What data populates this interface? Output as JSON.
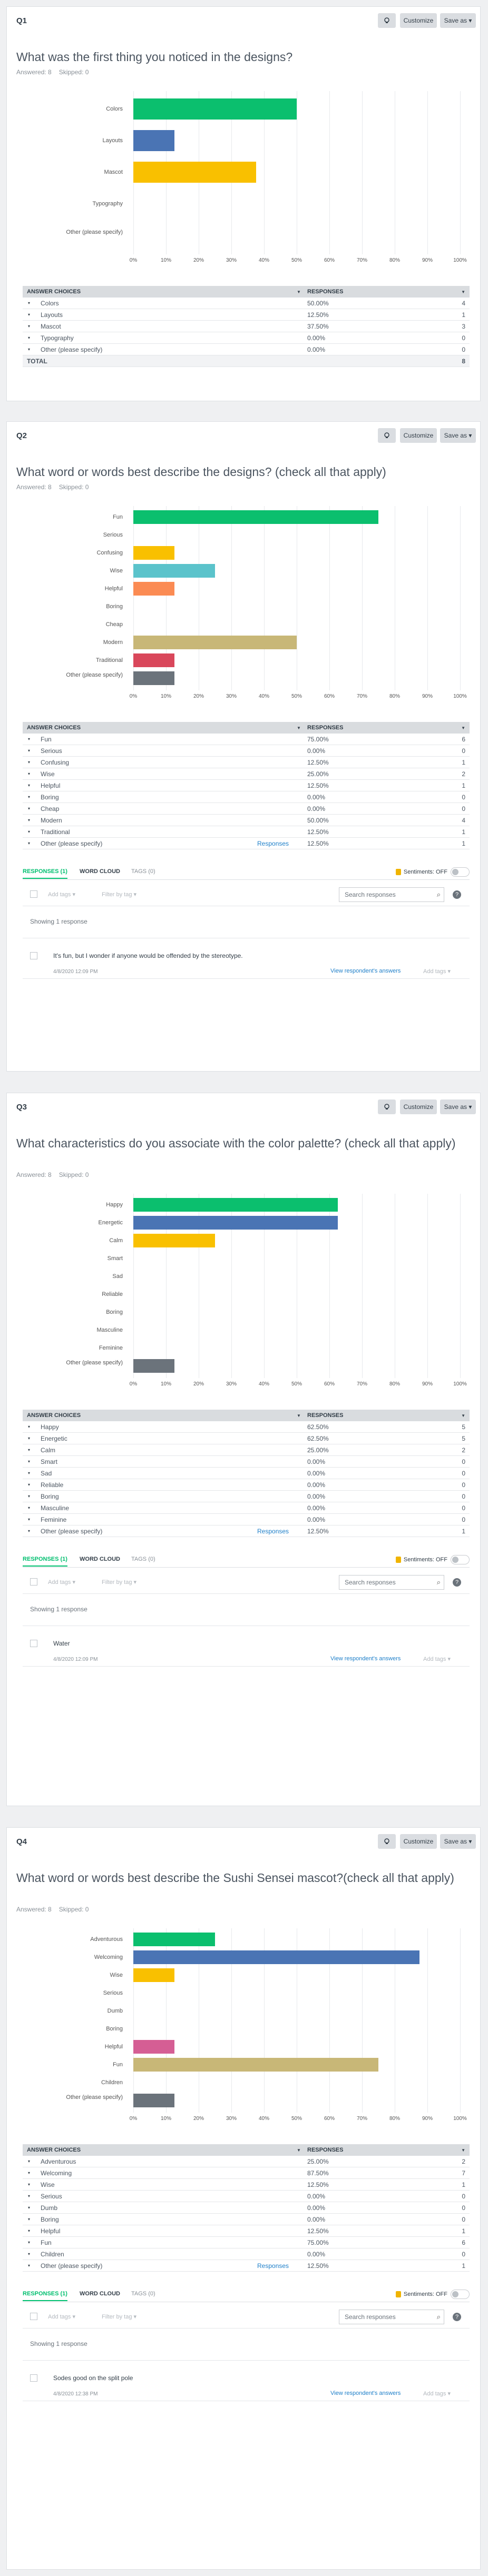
{
  "toolbar": {
    "customize_label": "Customize",
    "save_label": "Save as ▾",
    "icon_name": "bulb-icon"
  },
  "colors": {
    "green": "#0bbf6e",
    "blue": "#4a74b4",
    "yellow": "#f9c000",
    "teal": "#5bc3cb",
    "orange": "#fb8b53",
    "khaki": "#c8b777",
    "red": "#d9475b",
    "gray": "#6b737b",
    "pink": "#d55e94"
  },
  "axis_ticks": [
    "0%",
    "10%",
    "20%",
    "30%",
    "40%",
    "50%",
    "60%",
    "70%",
    "80%",
    "90%",
    "100%"
  ],
  "table_headers": {
    "choices": "ANSWER CHOICES",
    "responses": "RESPONSES"
  },
  "tabs": {
    "responses": "RESPONSES",
    "word_cloud": "WORD CLOUD",
    "tags": "TAGS (0)",
    "sentiments": "Sentiments: OFF"
  },
  "filters": {
    "add_tags": "Add tags ▾",
    "filter_by_tag": "Filter by tag ▾",
    "search_placeholder": "Search responses",
    "help": "?"
  },
  "view_answers_label": "View respondent's answers",
  "add_tags_label": "Add tags ▾",
  "responses_link": "Responses",
  "questions": [
    {
      "num": "Q1",
      "title": "What was the first thing you noticed in the designs?",
      "answered": "Answered: 8",
      "skipped": "Skipped: 0",
      "rows": [
        {
          "label": "Colors",
          "pct": "50.00%",
          "count": "4",
          "value": 50,
          "color": "#0bbf6e"
        },
        {
          "label": "Layouts",
          "pct": "12.50%",
          "count": "1",
          "value": 12.5,
          "color": "#4a74b4"
        },
        {
          "label": "Mascot",
          "pct": "37.50%",
          "count": "3",
          "value": 37.5,
          "color": "#f9c000"
        },
        {
          "label": "Typography",
          "pct": "0.00%",
          "count": "0",
          "value": 0,
          "color": "#5bc3cb"
        },
        {
          "label": "Other (please specify)",
          "pct": "0.00%",
          "count": "0",
          "value": 0,
          "color": "#6b737b"
        }
      ],
      "total_label": "TOTAL",
      "total": "8"
    },
    {
      "num": "Q2",
      "title": "What word or words best describe the designs? (check all that apply)",
      "answered": "Answered: 8",
      "skipped": "Skipped: 0",
      "rows": [
        {
          "label": "Fun",
          "pct": "75.00%",
          "count": "6",
          "value": 75,
          "color": "#0bbf6e"
        },
        {
          "label": "Serious",
          "pct": "0.00%",
          "count": "0",
          "value": 0,
          "color": "#4a74b4"
        },
        {
          "label": "Confusing",
          "pct": "12.50%",
          "count": "1",
          "value": 12.5,
          "color": "#f9c000"
        },
        {
          "label": "Wise",
          "pct": "25.00%",
          "count": "2",
          "value": 25,
          "color": "#5bc3cb"
        },
        {
          "label": "Helpful",
          "pct": "12.50%",
          "count": "1",
          "value": 12.5,
          "color": "#fb8b53"
        },
        {
          "label": "Boring",
          "pct": "0.00%",
          "count": "0",
          "value": 0,
          "color": "#d55e94"
        },
        {
          "label": "Cheap",
          "pct": "0.00%",
          "count": "0",
          "value": 0,
          "color": "#6b737b"
        },
        {
          "label": "Modern",
          "pct": "50.00%",
          "count": "4",
          "value": 50,
          "color": "#c8b777"
        },
        {
          "label": "Traditional",
          "pct": "12.50%",
          "count": "1",
          "value": 12.5,
          "color": "#d9475b"
        },
        {
          "label": "Other (please specify)",
          "pct": "12.50%",
          "count": "1",
          "value": 12.5,
          "color": "#6b737b"
        }
      ],
      "responses_tab": "RESPONSES (1)",
      "showing": "Showing 1 response",
      "response_text": "It's fun, but I wonder if anyone would be offended by the stereotype.",
      "response_date": "4/8/2020 12:09 PM"
    },
    {
      "num": "Q3",
      "title": "What characteristics do you associate with the color palette? (check all that apply)",
      "answered": "Answered: 8",
      "skipped": "Skipped: 0",
      "rows": [
        {
          "label": "Happy",
          "pct": "62.50%",
          "count": "5",
          "value": 62.5,
          "color": "#0bbf6e"
        },
        {
          "label": "Energetic",
          "pct": "62.50%",
          "count": "5",
          "value": 62.5,
          "color": "#4a74b4"
        },
        {
          "label": "Calm",
          "pct": "25.00%",
          "count": "2",
          "value": 25,
          "color": "#f9c000"
        },
        {
          "label": "Smart",
          "pct": "0.00%",
          "count": "0",
          "value": 0,
          "color": "#5bc3cb"
        },
        {
          "label": "Sad",
          "pct": "0.00%",
          "count": "0",
          "value": 0,
          "color": "#fb8b53"
        },
        {
          "label": "Reliable",
          "pct": "0.00%",
          "count": "0",
          "value": 0,
          "color": "#d55e94"
        },
        {
          "label": "Boring",
          "pct": "0.00%",
          "count": "0",
          "value": 0,
          "color": "#6b737b"
        },
        {
          "label": "Masculine",
          "pct": "0.00%",
          "count": "0",
          "value": 0,
          "color": "#c8b777"
        },
        {
          "label": "Feminine",
          "pct": "0.00%",
          "count": "0",
          "value": 0,
          "color": "#d9475b"
        },
        {
          "label": "Other (please specify)",
          "pct": "12.50%",
          "count": "1",
          "value": 12.5,
          "color": "#6b737b"
        }
      ],
      "responses_tab": "RESPONSES (1)",
      "showing": "Showing 1 response",
      "response_text": "Water",
      "response_date": "4/8/2020 12:09 PM"
    },
    {
      "num": "Q4",
      "title": "What word or words best describe the Sushi Sensei mascot?(check all that apply)",
      "answered": "Answered: 8",
      "skipped": "Skipped: 0",
      "rows": [
        {
          "label": "Adventurous",
          "pct": "25.00%",
          "count": "2",
          "value": 25,
          "color": "#0bbf6e"
        },
        {
          "label": "Welcoming",
          "pct": "87.50%",
          "count": "7",
          "value": 87.5,
          "color": "#4a74b4"
        },
        {
          "label": "Wise",
          "pct": "12.50%",
          "count": "1",
          "value": 12.5,
          "color": "#f9c000"
        },
        {
          "label": "Serious",
          "pct": "0.00%",
          "count": "0",
          "value": 0,
          "color": "#5bc3cb"
        },
        {
          "label": "Dumb",
          "pct": "0.00%",
          "count": "0",
          "value": 0,
          "color": "#fb8b53"
        },
        {
          "label": "Boring",
          "pct": "0.00%",
          "count": "0",
          "value": 0,
          "color": "#6b737b"
        },
        {
          "label": "Helpful",
          "pct": "12.50%",
          "count": "1",
          "value": 12.5,
          "color": "#d55e94"
        },
        {
          "label": "Fun",
          "pct": "75.00%",
          "count": "6",
          "value": 75,
          "color": "#c8b777"
        },
        {
          "label": "Children",
          "pct": "0.00%",
          "count": "0",
          "value": 0,
          "color": "#d9475b"
        },
        {
          "label": "Other (please specify)",
          "pct": "12.50%",
          "count": "1",
          "value": 12.5,
          "color": "#6b737b"
        }
      ],
      "responses_tab": "RESPONSES (1)",
      "showing": "Showing 1 response",
      "response_text": "Sodes good on the split pole",
      "response_date": "4/8/2020 12:38 PM"
    }
  ]
}
